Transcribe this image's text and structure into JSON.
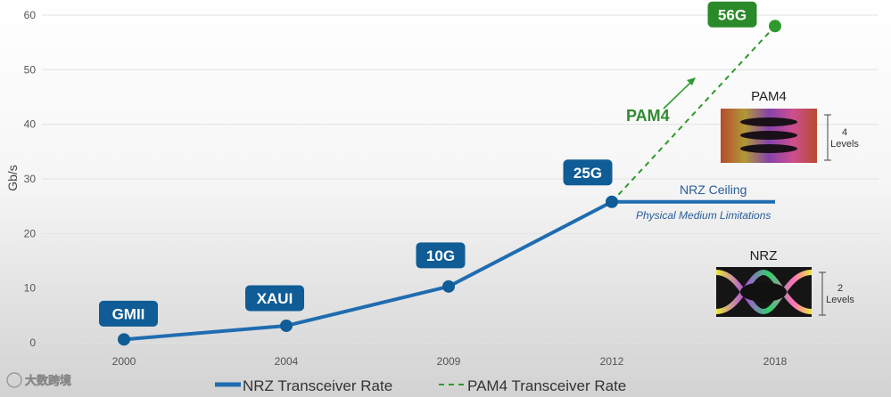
{
  "chart_data": {
    "type": "line",
    "ylabel": "Gb/s",
    "ylim": [
      0,
      60
    ],
    "yticks": [
      0,
      10,
      20,
      30,
      40,
      50,
      60
    ],
    "categories": [
      "2000",
      "2004",
      "2009",
      "2012",
      "2018"
    ],
    "series": [
      {
        "name": "NRZ Transceiver Rate",
        "style": "solid",
        "color": "#1f6cb0",
        "points": [
          {
            "x": "2000",
            "y": 0.6,
            "label": "GMII"
          },
          {
            "x": "2004",
            "y": 3.1,
            "label": "XAUI"
          },
          {
            "x": "2009",
            "y": 10.3,
            "label": "10G"
          },
          {
            "x": "2012",
            "y": 25.8,
            "label": "25G"
          }
        ],
        "ceiling": {
          "from": "2012",
          "to": "2018",
          "y": 25.8
        }
      },
      {
        "name": "PAM4 Transceiver Rate",
        "style": "dashed",
        "color": "#2e9a2e",
        "points": [
          {
            "x": "2012",
            "y": 25.8
          },
          {
            "x": "2018",
            "y": 58,
            "label": "56G"
          }
        ]
      }
    ],
    "annotations": {
      "ceiling": "NRZ Ceiling",
      "physical": "Physical Medium Limitations",
      "pam4": "PAM4"
    },
    "legend": {
      "placement": "bottom"
    }
  },
  "insets": {
    "pam4": {
      "title": "PAM4",
      "levels_top": "4",
      "levels_bottom": "Levels"
    },
    "nrz": {
      "title": "NRZ",
      "levels_top": "2",
      "levels_bottom": "Levels"
    }
  },
  "watermark": "大数跨境",
  "colors": {
    "nrz": "#1f6cb0",
    "nrz_badge": "#0f5c96",
    "pam4": "#2e9a2e",
    "pam4_badge": "#2a8a2a"
  }
}
